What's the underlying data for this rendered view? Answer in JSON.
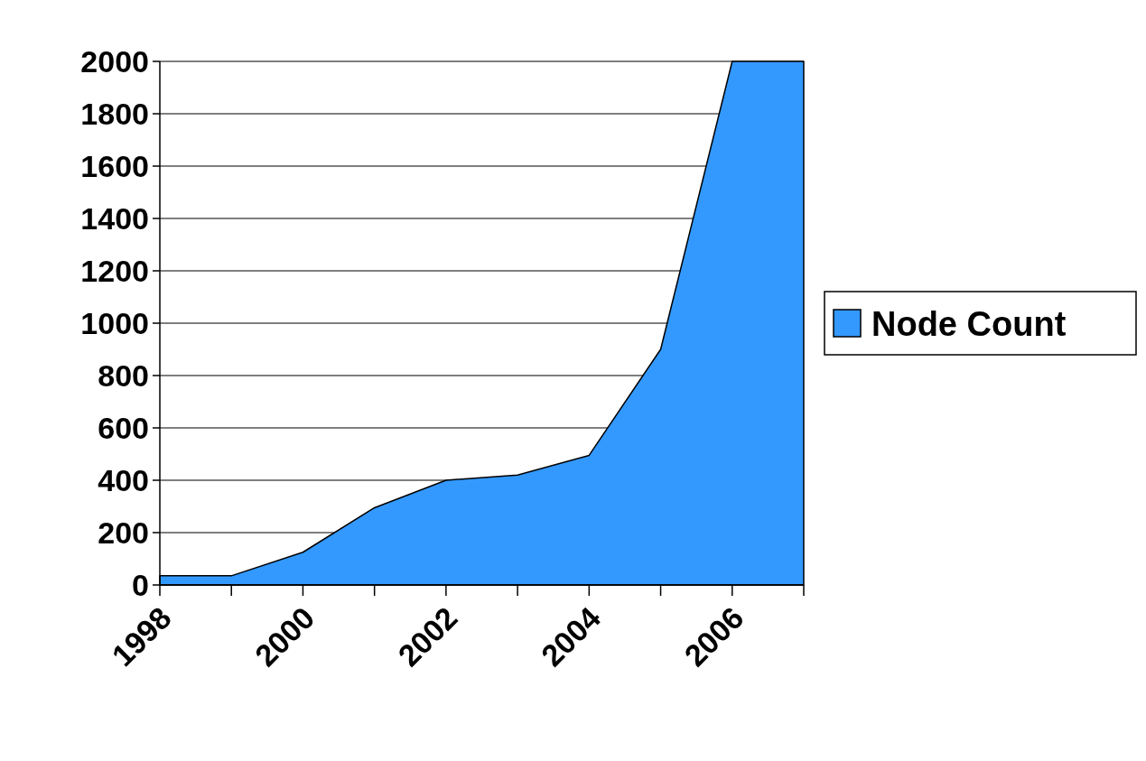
{
  "chart_data": {
    "type": "area",
    "categories": [
      "1998",
      null,
      "2000",
      null,
      "2002",
      null,
      "2004",
      null,
      "2006",
      null
    ],
    "series": [
      {
        "name": "Node Count",
        "color": "#3399ff",
        "values": [
          35,
          35,
          125,
          295,
          400,
          420,
          495,
          900,
          2000,
          2000
        ]
      }
    ],
    "ylim": [
      0,
      2000
    ],
    "yticks": [
      0,
      200,
      400,
      600,
      800,
      1000,
      1200,
      1400,
      1600,
      1800,
      2000
    ],
    "grid": "y",
    "legend": "right"
  }
}
